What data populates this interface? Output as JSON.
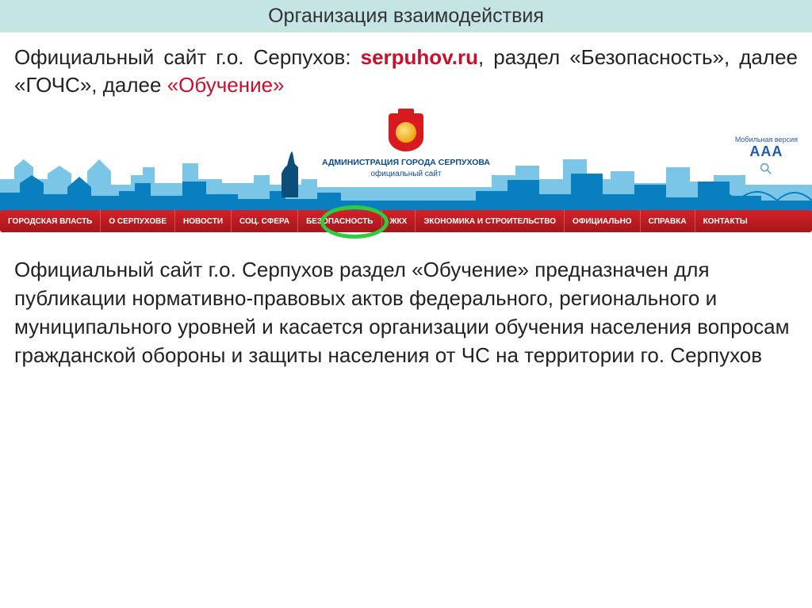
{
  "slide": {
    "title": "Организация взаимодействия",
    "intro_parts": {
      "p1": "Официальный сайт г.о. Серпухов: ",
      "url": "serpuhov.ru",
      "p2": ", раздел «Безопасность», далее «ГОЧС», далее ",
      "p3": "«Обучение»"
    },
    "body": "Официальный сайт г.о. Серпухов раздел «Обучение» предназначен для публикации нормативно-правовых актов федерального, регионального и муниципального уровней и касается организации обучения населения вопросам гражданской обороны и защиты населения от ЧС на территории го. Серпухов"
  },
  "banner": {
    "title": "АДМИНИСТРАЦИЯ ГОРОДА СЕРПУХОВА",
    "subtitle": "официальный сайт",
    "mobile_label": "Мобильная версия",
    "mobile_aaa": "ААА",
    "skyline_fill_light": "#7bc6e6",
    "skyline_fill_dark": "#0a7fbf",
    "emblem_bg": "#d61a1f",
    "emblem_gold1": "#ffe08a",
    "emblem_gold2": "#e8a70c",
    "text_color": "#0b4b8c"
  },
  "nav": {
    "items": [
      "ГОРОДСКАЯ ВЛАСТЬ",
      "О СЕРПУХОВЕ",
      "НОВОСТИ",
      "СОЦ. СФЕРА",
      "БЕЗОПАСНОСТЬ",
      "ЖКХ",
      "ЭКОНОМИКА И СТРОИТЕЛЬСТВО",
      "ОФИЦИАЛЬНО",
      "СПРАВКА",
      "КОНТАКТЫ"
    ],
    "highlight_index": 4,
    "bar_gradient_top": "#d42127",
    "bar_gradient_bottom": "#a5171c",
    "ring_color": "#2ecc40"
  },
  "colors": {
    "header_band": "#c5e4e4",
    "accent_red": "#c8102e",
    "text": "#222222",
    "background": "#ffffff"
  }
}
